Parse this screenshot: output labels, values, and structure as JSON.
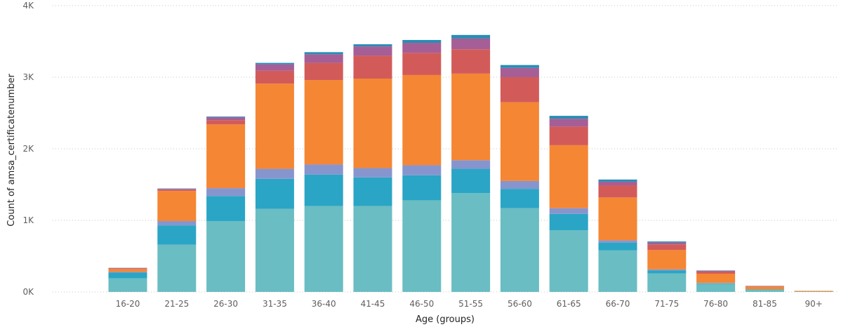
{
  "chart_data": {
    "type": "bar",
    "stacked": true,
    "xlabel": "Age (groups)",
    "ylabel": "Count of amsa_certificatenumber",
    "ylim": [
      0,
      4000
    ],
    "yticks": [
      {
        "value": 0,
        "label": "0K"
      },
      {
        "value": 1000,
        "label": "1K"
      },
      {
        "value": 2000,
        "label": "2K"
      },
      {
        "value": 3000,
        "label": "3K"
      },
      {
        "value": 4000,
        "label": "4K"
      }
    ],
    "grid": true,
    "categories": [
      "16-20",
      "21-25",
      "26-30",
      "31-35",
      "36-40",
      "41-45",
      "46-50",
      "51-55",
      "56-60",
      "61-65",
      "66-70",
      "71-75",
      "76-80",
      "81-85",
      "90+"
    ],
    "series": [
      {
        "color": "#6ABDC2",
        "values": [
          190,
          660,
          990,
          1160,
          1200,
          1200,
          1280,
          1380,
          1170,
          860,
          580,
          260,
          110,
          30,
          5
        ]
      },
      {
        "color": "#2AA5C5",
        "values": [
          80,
          270,
          350,
          420,
          440,
          400,
          350,
          340,
          270,
          230,
          110,
          40,
          10,
          5,
          0
        ]
      },
      {
        "color": "#8795CE",
        "values": [
          10,
          60,
          110,
          140,
          140,
          130,
          140,
          120,
          110,
          80,
          30,
          15,
          5,
          0,
          0
        ]
      },
      {
        "color": "#F58634",
        "values": [
          40,
          420,
          890,
          1190,
          1180,
          1250,
          1260,
          1210,
          1100,
          880,
          600,
          270,
          130,
          40,
          10
        ]
      },
      {
        "color": "#D25B59",
        "values": [
          10,
          20,
          60,
          180,
          240,
          320,
          310,
          340,
          350,
          260,
          170,
          80,
          30,
          5,
          0
        ]
      },
      {
        "color": "#A65E96",
        "values": [
          5,
          10,
          40,
          90,
          120,
          130,
          140,
          150,
          130,
          110,
          50,
          25,
          10,
          3,
          0
        ]
      },
      {
        "color": "#2A8DB3",
        "values": [
          2,
          5,
          10,
          20,
          30,
          30,
          40,
          50,
          40,
          40,
          30,
          15,
          5,
          2,
          0
        ]
      }
    ]
  }
}
